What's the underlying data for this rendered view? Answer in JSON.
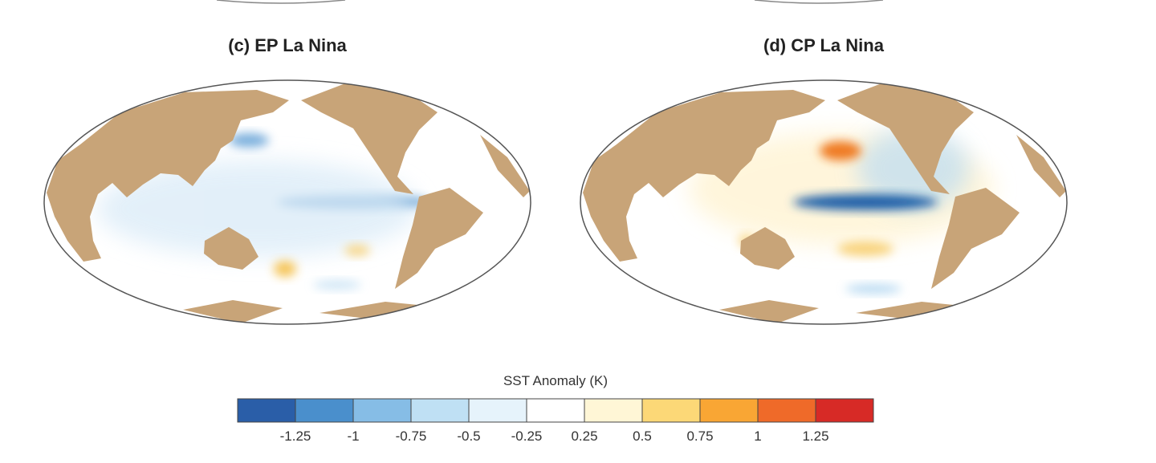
{
  "panels": [
    {
      "title": "(c) EP La Nina"
    },
    {
      "title": "(d) CP La Nina"
    }
  ],
  "colorbar": {
    "title": "SST Anomaly (K)",
    "tick_labels": [
      "-1.25",
      "-1",
      "-0.75",
      "-0.5",
      "-0.25",
      "0.25",
      "0.5",
      "0.75",
      "1",
      "1.25"
    ],
    "colors": [
      "#2a5ea8",
      "#4a8fcc",
      "#86bde6",
      "#bfe0f4",
      "#e6f3fb",
      "#ffffff",
      "#fff6d6",
      "#fcd877",
      "#f9a634",
      "#ef6a29",
      "#d72a26"
    ]
  },
  "colors": {
    "land": "#c8a478",
    "ocean": "#ffffff",
    "outline": "#555555"
  },
  "chart_data": {
    "type": "heatmap",
    "title": "SST Anomaly (K)",
    "levels": [
      -1.25,
      -1,
      -0.75,
      -0.5,
      -0.25,
      0.25,
      0.5,
      0.75,
      1,
      1.25
    ],
    "panels": [
      "(c) EP La Nina",
      "(d) CP La Nina"
    ]
  }
}
